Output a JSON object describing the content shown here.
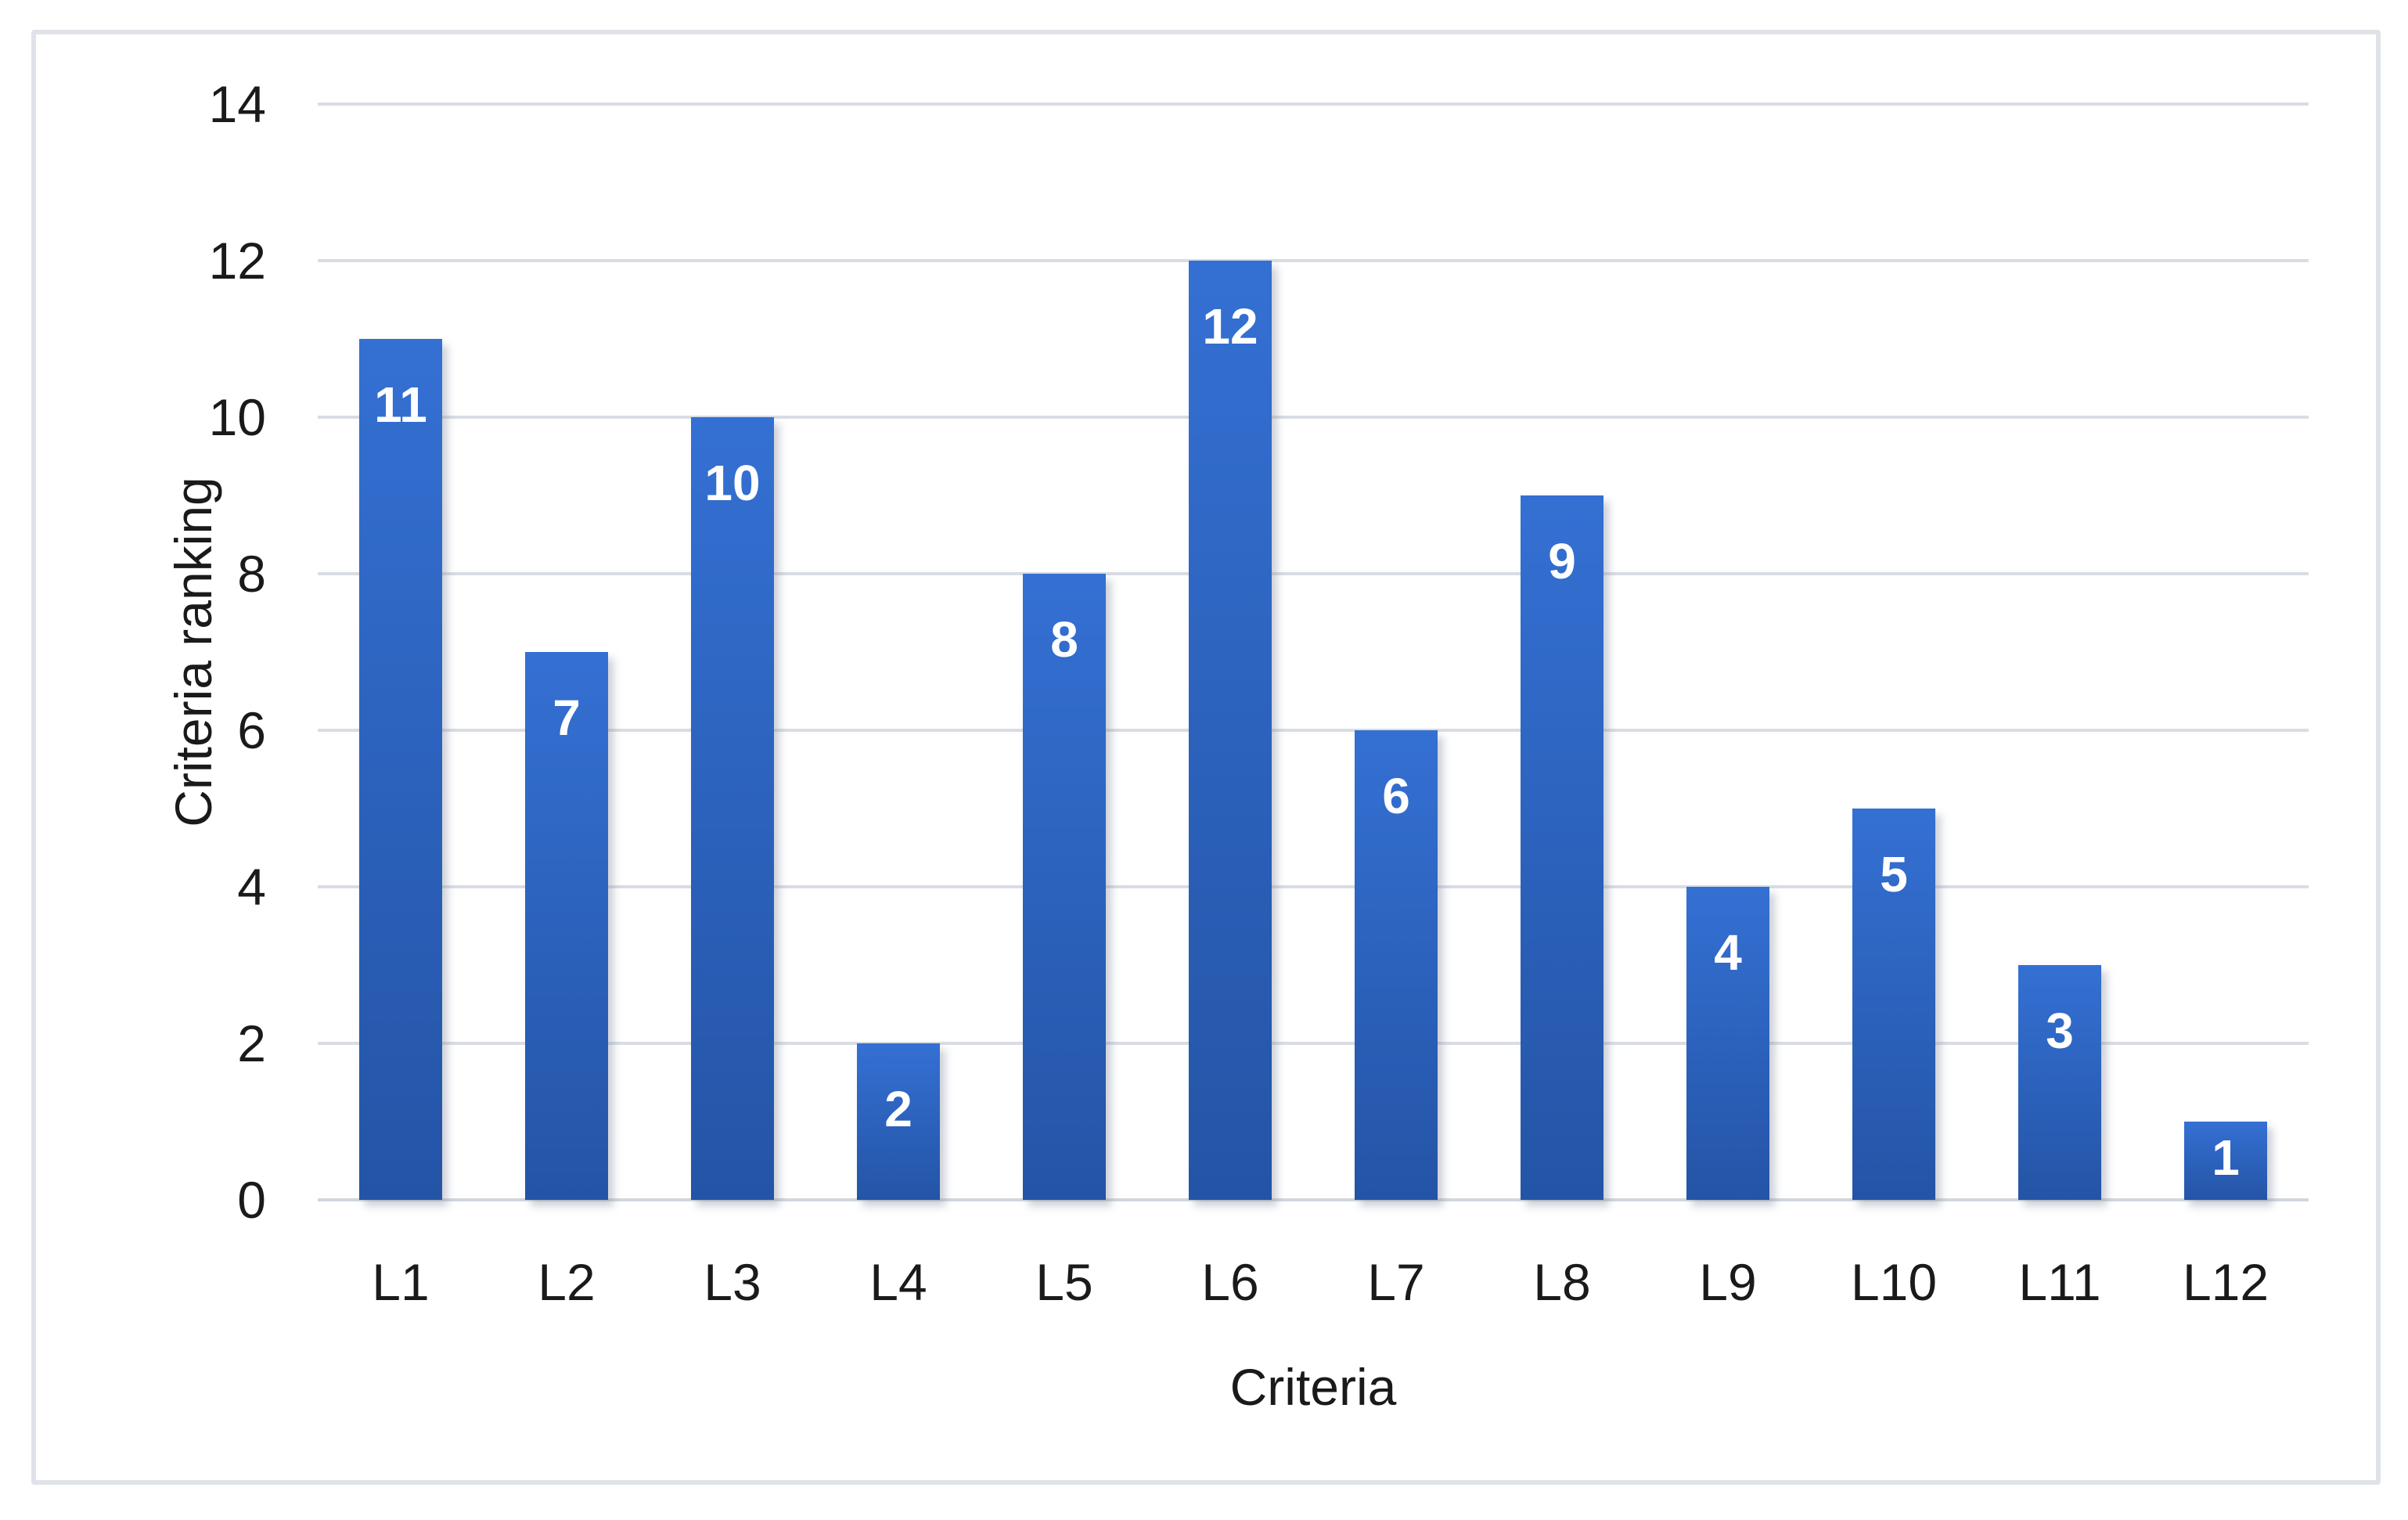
{
  "chart_data": {
    "type": "bar",
    "title": "",
    "categories": [
      "L1",
      "L2",
      "L3",
      "L4",
      "L5",
      "L6",
      "L7",
      "L8",
      "L9",
      "L10",
      "L11",
      "L12"
    ],
    "values": [
      11,
      7,
      10,
      2,
      8,
      12,
      6,
      9,
      4,
      5,
      3,
      1
    ],
    "data_labels": [
      "11",
      "7",
      "10",
      "2",
      "8",
      "12",
      "6",
      "9",
      "4",
      "5",
      "3",
      "1"
    ],
    "xlabel": "Criteria",
    "ylabel": "Criteria ranking",
    "ylim": [
      0,
      14
    ],
    "y_ticks": [
      0,
      2,
      4,
      6,
      8,
      10,
      12,
      14
    ],
    "grid": "horizontal",
    "legend": "none",
    "data_label_position": "inside-end",
    "colors": {
      "bar_gradient_top": "#3470D3",
      "bar_gradient_bottom": "#2454A6",
      "data_label_text": "#FFFFFF",
      "gridline": "#D9DDE3",
      "baseline": "#D2D7DE",
      "frame_border": "#DFE3E9",
      "axis_text": "#1A1A1A",
      "background": "#FFFFFF"
    }
  }
}
